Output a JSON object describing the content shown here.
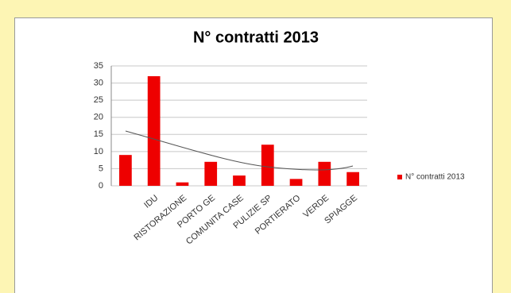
{
  "chart_data": {
    "type": "bar",
    "title": "N° contratti 2013",
    "categories": [
      null,
      "IDU",
      "RISTORAZIONE",
      "PORTO GE",
      "COMUNITA CASE",
      "PULIZIE SP",
      "PORTIERATO",
      "VERDE",
      "SPIAGGE"
    ],
    "series": [
      {
        "name": "N° contratti 2013",
        "color": "#ee0000",
        "values": [
          9,
          32,
          1,
          7,
          3,
          12,
          2,
          7,
          4
        ]
      }
    ],
    "ylim": [
      0,
      35
    ],
    "yticks": [
      0,
      5,
      10,
      15,
      20,
      25,
      30,
      35
    ],
    "grid": true,
    "legend": "right"
  }
}
